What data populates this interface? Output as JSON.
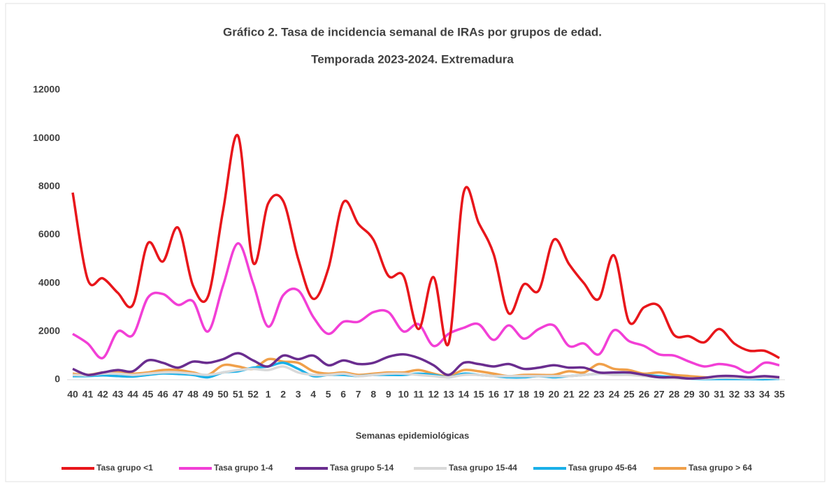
{
  "chart_data": {
    "type": "line",
    "title": "Gráfico 2. Tasa de incidencia semanal de IRAs por grupos de edad.",
    "subtitle": "Temporada 2023-2024. Extremadura",
    "x_label": "Semanas epidemiológicas",
    "categories": [
      "40",
      "41",
      "42",
      "43",
      "44",
      "45",
      "46",
      "47",
      "48",
      "49",
      "50",
      "51",
      "52",
      "1",
      "2",
      "3",
      "4",
      "5",
      "6",
      "7",
      "8",
      "9",
      "10",
      "11",
      "12",
      "13",
      "14",
      "15",
      "16",
      "17",
      "18",
      "19",
      "20",
      "21",
      "22",
      "23",
      "24",
      "25",
      "26",
      "27",
      "28",
      "29",
      "30",
      "31",
      "32",
      "33",
      "34",
      "35"
    ],
    "ylim": [
      0,
      12000
    ],
    "yticks": [
      0,
      2000,
      4000,
      6000,
      8000,
      10000,
      12000
    ],
    "grid": false,
    "legend": "bottom",
    "series": [
      {
        "name": "Tasa grupo <1",
        "color": "#e8161b",
        "values": [
          7750,
          4150,
          4200,
          3600,
          3100,
          5650,
          4900,
          6300,
          3900,
          3450,
          7000,
          10100,
          4850,
          7300,
          7400,
          5000,
          3350,
          4600,
          7350,
          6450,
          5800,
          4300,
          4300,
          2100,
          4250,
          1500,
          7750,
          6500,
          5200,
          2750,
          3950,
          3700,
          5800,
          4800,
          4000,
          3350,
          5150,
          2400,
          3000,
          3050,
          1850,
          1800,
          1550,
          2100,
          1500,
          1200,
          1200,
          900
        ]
      },
      {
        "name": "Tasa grupo 1-4",
        "color": "#f23fd6",
        "values": [
          1900,
          1500,
          900,
          2000,
          1850,
          3400,
          3550,
          3100,
          3250,
          2000,
          3900,
          5650,
          4000,
          2200,
          3500,
          3700,
          2600,
          1900,
          2400,
          2400,
          2800,
          2800,
          2000,
          2300,
          1400,
          1900,
          2150,
          2300,
          1650,
          2250,
          1700,
          2100,
          2250,
          1400,
          1500,
          1050,
          2050,
          1600,
          1400,
          1050,
          1000,
          750,
          550,
          650,
          550,
          300,
          700,
          600
        ]
      },
      {
        "name": "Tasa grupo 5-14",
        "color": "#6a2d8f",
        "values": [
          450,
          200,
          300,
          400,
          350,
          800,
          700,
          500,
          750,
          700,
          850,
          1100,
          800,
          550,
          1000,
          850,
          1000,
          600,
          800,
          650,
          700,
          950,
          1050,
          900,
          600,
          200,
          700,
          650,
          550,
          650,
          450,
          500,
          600,
          500,
          500,
          300,
          300,
          300,
          200,
          100,
          100,
          50,
          80,
          150,
          150,
          100,
          150,
          100
        ]
      },
      {
        "name": "Tasa grupo 15-44",
        "color": "#d9d9d9",
        "values": [
          200,
          180,
          250,
          250,
          200,
          250,
          300,
          300,
          250,
          200,
          300,
          400,
          450,
          400,
          550,
          300,
          200,
          200,
          250,
          150,
          200,
          250,
          250,
          200,
          150,
          100,
          200,
          200,
          150,
          150,
          150,
          150,
          150,
          150,
          200,
          250,
          200,
          200,
          150,
          100,
          80,
          60,
          50,
          80,
          80,
          60,
          80,
          60
        ]
      },
      {
        "name": "Tasa grupo 45-64",
        "color": "#1ab0e8",
        "values": [
          150,
          150,
          180,
          150,
          130,
          200,
          260,
          240,
          200,
          100,
          300,
          350,
          500,
          550,
          700,
          450,
          150,
          200,
          200,
          150,
          200,
          200,
          200,
          250,
          200,
          100,
          250,
          200,
          150,
          100,
          100,
          150,
          100,
          150,
          200,
          250,
          250,
          250,
          200,
          150,
          100,
          50,
          30,
          30,
          30,
          30,
          20,
          40
        ]
      },
      {
        "name": "Tasa grupo > 64",
        "color": "#f0a04a",
        "values": [
          250,
          200,
          300,
          300,
          250,
          300,
          400,
          400,
          300,
          200,
          600,
          550,
          450,
          850,
          750,
          700,
          350,
          250,
          300,
          200,
          250,
          300,
          300,
          400,
          250,
          150,
          400,
          350,
          250,
          150,
          200,
          200,
          200,
          350,
          300,
          650,
          450,
          400,
          250,
          300,
          200,
          150,
          100,
          80,
          80,
          80,
          120,
          80
        ]
      }
    ]
  }
}
